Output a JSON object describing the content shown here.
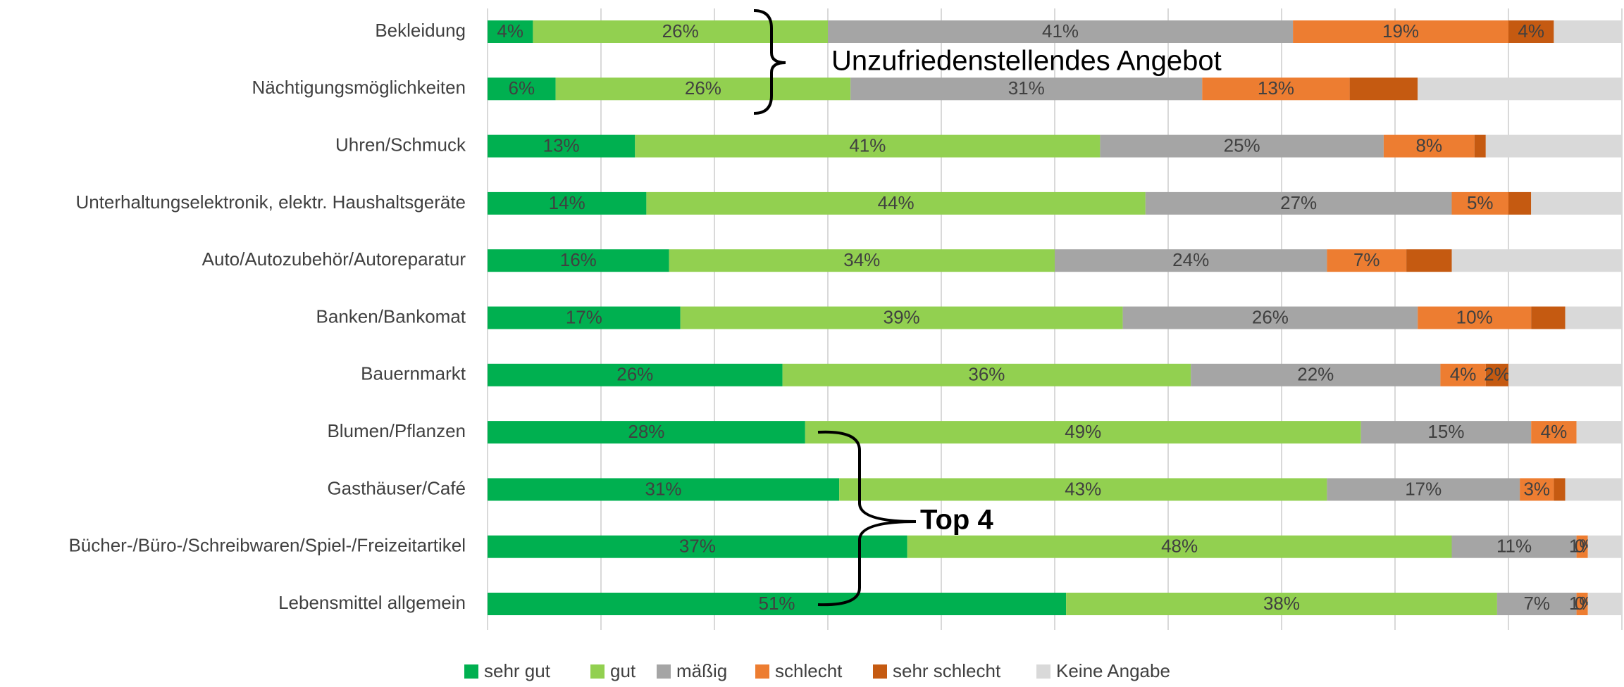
{
  "chart_data": {
    "type": "bar",
    "orientation": "horizontal",
    "stacked": true,
    "categories": [
      "Bekleidung",
      "Nächtigungsmöglichkeiten",
      "Uhren/Schmuck",
      "Unterhaltungselektronik, elektr. Haushaltsgeräte",
      "Auto/Autozubehör/Autoreparatur",
      "Banken/Bankomat",
      "Bauernmarkt",
      "Blumen/Pflanzen",
      "Gasthäuser/Café",
      "Bücher-/Büro-/Schreibwaren/Spiel-/Freizeitartikel",
      "Lebensmittel allgemein"
    ],
    "series": [
      {
        "name": "sehr gut",
        "color": "#00b050",
        "values": [
          4,
          6,
          13,
          14,
          16,
          17,
          26,
          28,
          31,
          37,
          51
        ],
        "value_labels": [
          "4%",
          "6%",
          "13%",
          "14%",
          "16%",
          "17%",
          "26%",
          "28%",
          "31%",
          "37%",
          "51%"
        ]
      },
      {
        "name": "gut",
        "color": "#92d050",
        "values": [
          26,
          26,
          41,
          44,
          34,
          39,
          36,
          49,
          43,
          48,
          38
        ],
        "value_labels": [
          "26%",
          "26%",
          "41%",
          "44%",
          "34%",
          "39%",
          "36%",
          "49%",
          "43%",
          "48%",
          "38%"
        ]
      },
      {
        "name": "mäßig",
        "color": "#a5a5a5",
        "values": [
          41,
          31,
          25,
          27,
          24,
          26,
          22,
          15,
          17,
          11,
          7
        ],
        "value_labels": [
          "41%",
          "31%",
          "25%",
          "27%",
          "24%",
          "26%",
          "22%",
          "15%",
          "17%",
          "11%",
          "7%"
        ]
      },
      {
        "name": "schlecht",
        "color": "#ed7d31",
        "values": [
          19,
          13,
          8,
          5,
          7,
          10,
          4,
          4,
          3,
          1,
          1
        ],
        "value_labels": [
          "19%",
          "13%",
          "8%",
          "5%",
          "7%",
          "10%",
          "4%",
          "4%",
          "3%",
          "1%",
          "1%"
        ]
      },
      {
        "name": "sehr schlecht",
        "color": "#c55a11",
        "values": [
          4,
          6,
          1,
          2,
          4,
          3,
          2,
          null,
          1,
          0,
          0
        ],
        "value_labels": [
          "4%",
          null,
          null,
          null,
          null,
          null,
          "2%",
          null,
          null,
          "0%",
          "0%"
        ]
      },
      {
        "name": "Keine Angabe",
        "color": "#d9d9d9",
        "values": [
          6,
          18,
          12,
          8,
          15,
          5,
          10,
          4,
          5,
          3,
          3
        ]
      }
    ],
    "xlim": [
      0,
      100
    ],
    "xticks": [
      0,
      10,
      20,
      30,
      40,
      50,
      60,
      70,
      80,
      90,
      100
    ],
    "grid": true,
    "annotations": [
      "Unzufriedenstellendes Angebot",
      "Top 4"
    ]
  }
}
